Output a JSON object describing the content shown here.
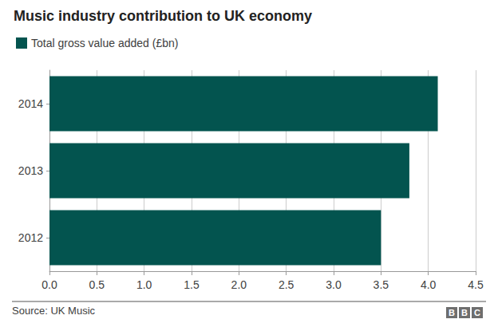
{
  "chart_data": {
    "type": "bar",
    "title": "Music industry contribution to UK economy",
    "orientation": "horizontal",
    "categories": [
      "2014",
      "2013",
      "2012"
    ],
    "series": [
      {
        "name": "Total gross value added (£bn)",
        "color": "#03544f",
        "values": [
          4.1,
          3.8,
          3.5
        ]
      }
    ],
    "xlim": [
      0,
      4.5
    ],
    "xticks": [
      {
        "value": 0,
        "label": "0.0"
      },
      0.5,
      {
        "value": 1,
        "label": "1.0"
      },
      1.5,
      {
        "value": 2,
        "label": "2.0"
      },
      2.5,
      {
        "value": 3,
        "label": "3.0"
      },
      3.5,
      {
        "value": 4,
        "label": "4.0"
      },
      4.5
    ],
    "grid": true,
    "legend": "top-left",
    "source": "Source: UK Music",
    "branding": "BBC"
  }
}
